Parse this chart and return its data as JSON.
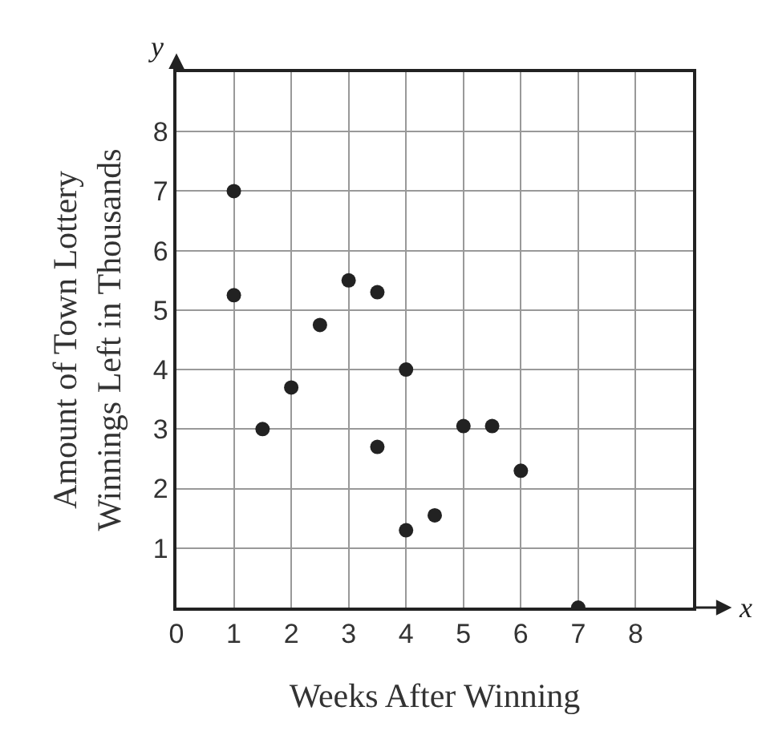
{
  "chart_data": {
    "type": "scatter",
    "xlabel": "Weeks After Winning",
    "ylabel": "Amount of Town Lottery Winnings Left in Thousands",
    "x": [
      1,
      1,
      1.5,
      2,
      2.5,
      3,
      3.5,
      3.5,
      4,
      4,
      4.5,
      5,
      5.5,
      6,
      7
    ],
    "values": [
      7,
      5.25,
      3,
      3.7,
      4.75,
      5.5,
      5.3,
      2.7,
      4,
      1.3,
      1.55,
      3.05,
      3.05,
      2.3,
      0
    ],
    "color": "#222222",
    "marker": "circle",
    "grid": true,
    "xlim": [
      0,
      9
    ],
    "xticks": [
      0,
      1,
      2,
      3,
      4,
      5,
      6,
      7,
      8
    ],
    "ylim": [
      0,
      9
    ],
    "yticks": [
      1,
      2,
      3,
      4,
      5,
      6,
      7,
      8
    ],
    "annotations": [
      "y",
      "x"
    ]
  }
}
